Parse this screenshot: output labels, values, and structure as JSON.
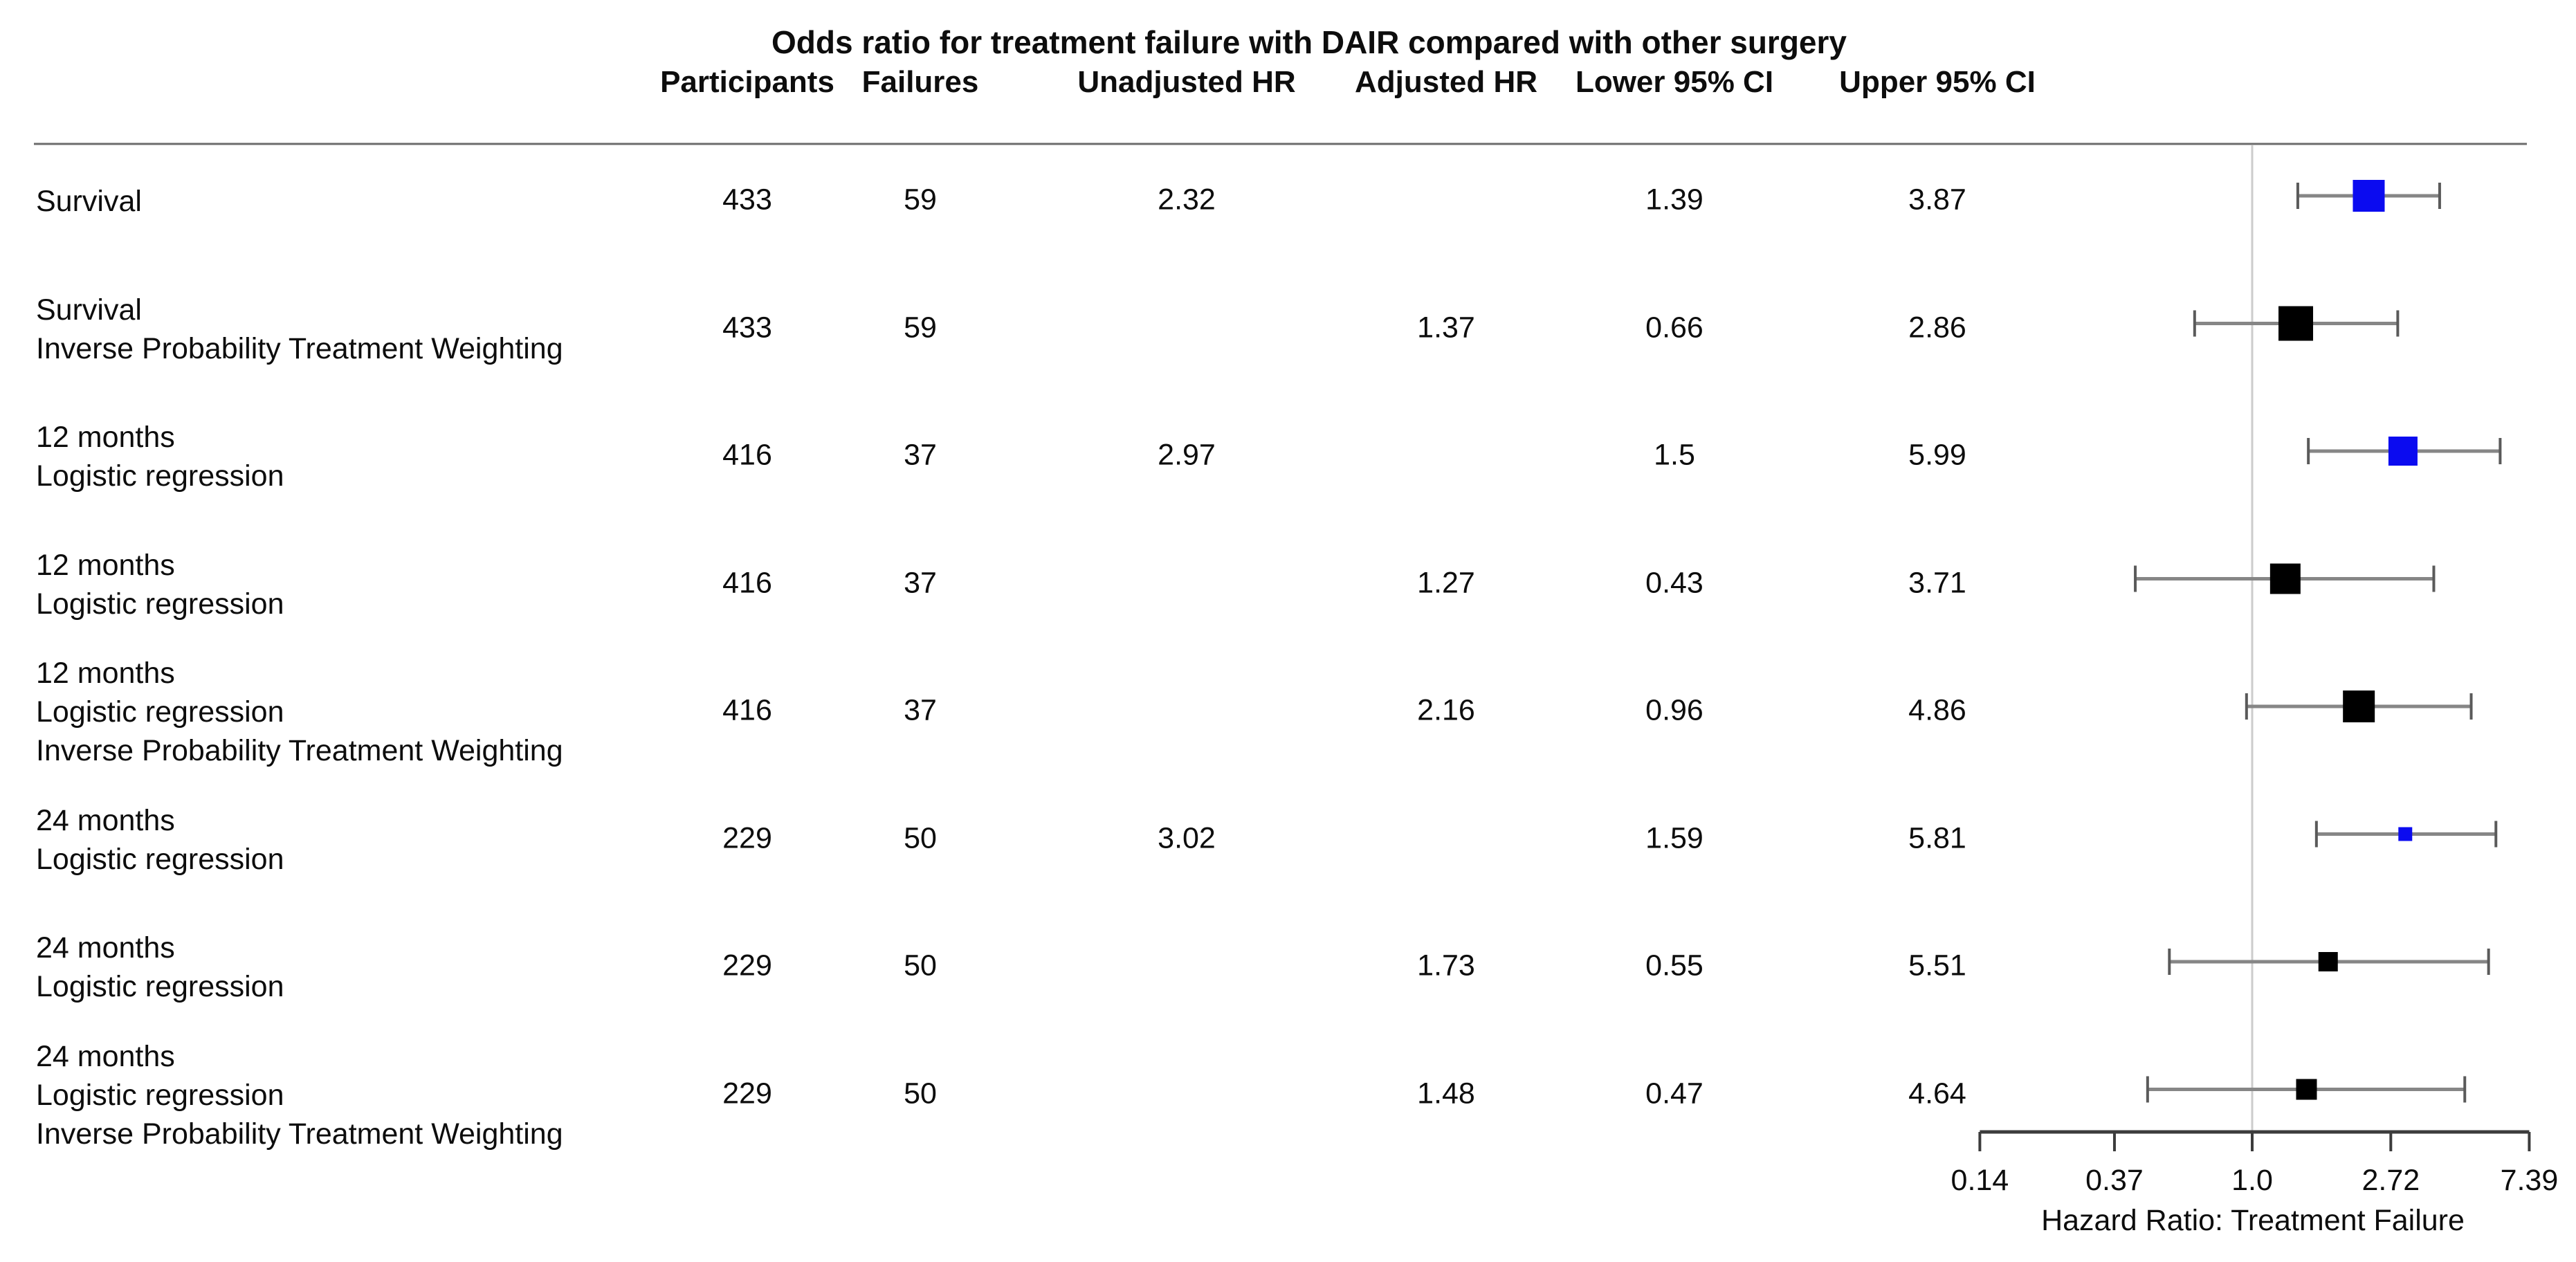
{
  "chart_data": {
    "type": "forest",
    "title": "Odds ratio for treatment failure with DAIR compared with other surgery",
    "columns": [
      "Participants",
      "Failures",
      "Unadjusted HR",
      "Adjusted HR",
      "Lower 95% CI",
      "Upper 95% CI"
    ],
    "xlabel": "Hazard Ratio: Treatment Failure",
    "x_scale": "log",
    "x_ticks": [
      "0.14",
      "0.37",
      "1.0",
      "2.72",
      "7.39"
    ],
    "reference_line": 1.0,
    "colors": {
      "unadjusted_marker": "#0b0bf0",
      "adjusted_marker": "#000000",
      "ci_line": "#868686",
      "ci_cap": "#5a5a5a",
      "reference_line": "#cccccc",
      "rule": "#6b6b6b",
      "axis": "#3c3c3c"
    },
    "rows": [
      {
        "label_lines": [
          "Survival"
        ],
        "participants": "433",
        "failures": "59",
        "unadjusted_hr": "2.32",
        "adjusted_hr": "",
        "lower_ci": "1.39",
        "upper_ci": "3.87",
        "estimate": 2.32,
        "lower": 1.39,
        "upper": 3.87,
        "marker_color": "blue",
        "marker_px": 46
      },
      {
        "label_lines": [
          "Survival",
          "Inverse Probability Treatment Weighting"
        ],
        "participants": "433",
        "failures": "59",
        "unadjusted_hr": "",
        "adjusted_hr": "1.37",
        "lower_ci": "0.66",
        "upper_ci": "2.86",
        "estimate": 1.37,
        "lower": 0.66,
        "upper": 2.86,
        "marker_color": "black",
        "marker_px": 50
      },
      {
        "label_lines": [
          "12 months",
          "Logistic regression"
        ],
        "participants": "416",
        "failures": "37",
        "unadjusted_hr": "2.97",
        "adjusted_hr": "",
        "lower_ci": "1.5",
        "upper_ci": "5.99",
        "estimate": 2.97,
        "lower": 1.5,
        "upper": 5.99,
        "marker_color": "blue",
        "marker_px": 42
      },
      {
        "label_lines": [
          "12 months",
          "Logistic regression"
        ],
        "participants": "416",
        "failures": "37",
        "unadjusted_hr": "",
        "adjusted_hr": "1.27",
        "lower_ci": "0.43",
        "upper_ci": "3.71",
        "estimate": 1.27,
        "lower": 0.43,
        "upper": 3.71,
        "marker_color": "black",
        "marker_px": 44
      },
      {
        "label_lines": [
          "12 months",
          "Logistic regression",
          "Inverse Probability Treatment Weighting"
        ],
        "participants": "416",
        "failures": "37",
        "unadjusted_hr": "",
        "adjusted_hr": "2.16",
        "lower_ci": "0.96",
        "upper_ci": "4.86",
        "estimate": 2.16,
        "lower": 0.96,
        "upper": 4.86,
        "marker_color": "black",
        "marker_px": 46
      },
      {
        "label_lines": [
          "24 months",
          "Logistic regression"
        ],
        "participants": "229",
        "failures": "50",
        "unadjusted_hr": "3.02",
        "adjusted_hr": "",
        "lower_ci": "1.59",
        "upper_ci": "5.81",
        "estimate": 3.02,
        "lower": 1.59,
        "upper": 5.81,
        "marker_color": "blue",
        "marker_px": 20
      },
      {
        "label_lines": [
          "24 months",
          "Logistic regression"
        ],
        "participants": "229",
        "failures": "50",
        "unadjusted_hr": "",
        "adjusted_hr": "1.73",
        "lower_ci": "0.55",
        "upper_ci": "5.51",
        "estimate": 1.73,
        "lower": 0.55,
        "upper": 5.51,
        "marker_color": "black",
        "marker_px": 28
      },
      {
        "label_lines": [
          "24 months",
          "Logistic regression",
          "Inverse Probability Treatment Weighting"
        ],
        "participants": "229",
        "failures": "50",
        "unadjusted_hr": "",
        "adjusted_hr": "1.48",
        "lower_ci": "0.47",
        "upper_ci": "4.64",
        "estimate": 1.48,
        "lower": 0.47,
        "upper": 4.64,
        "marker_color": "black",
        "marker_px": 30
      }
    ]
  }
}
